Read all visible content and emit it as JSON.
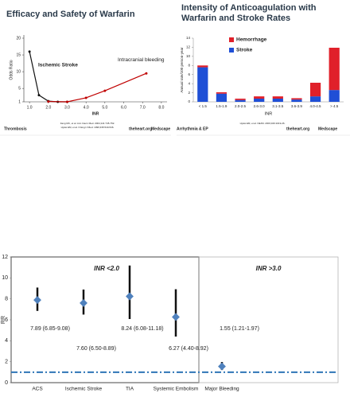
{
  "chart_data": [
    {
      "type": "line",
      "title": "Efficacy and Safety of Warfarin",
      "xlabel": "INR",
      "ylabel": "Odds Ratio",
      "xlim": [
        0.7,
        8.3
      ],
      "ylim": [
        1,
        20
      ],
      "xticks": [
        {
          "value": 1,
          "label": "1.0"
        },
        {
          "value": 2,
          "label": "2.0"
        },
        {
          "value": 3,
          "label": "3.0"
        },
        {
          "value": 4,
          "label": "4.0"
        },
        {
          "value": 5,
          "label": "5.0"
        },
        {
          "value": 6,
          "label": "6.0"
        },
        {
          "value": 7,
          "label": "7.0"
        },
        {
          "value": 8,
          "label": "8.0"
        }
      ],
      "yticks": [
        1,
        5,
        10,
        15,
        20
      ],
      "series": [
        {
          "name": "Ischemic Stroke",
          "color": "#111111",
          "x": [
            1.0,
            1.5,
            2.0,
            2.5,
            3.0
          ],
          "values": [
            16,
            3,
            1.2,
            1,
            1
          ]
        },
        {
          "name": "Intracranial bleeding",
          "color": "#c00000",
          "x": [
            2.0,
            3.0,
            4.0,
            5.0,
            7.2
          ],
          "values": [
            1.1,
            1,
            2.2,
            4.3,
            9.5
          ]
        }
      ],
      "footnotes": [
        "Fang MC, et al. Ann Intern Med. 2004;141:745-752.",
        "Hylek EM, et al. N Engl J Med. 1996;335:540-546."
      ],
      "logos": [
        "Thrombosis",
        "theheart.org",
        "Medscape"
      ]
    },
    {
      "type": "bar",
      "stacked": true,
      "title": "Intensity of Anticoagulation  with Warfarin and Stroke Rates",
      "xlabel": "INR",
      "ylabel": "Annual rate/100 person-year",
      "categories": [
        "< 1.5",
        "1.5-1.9",
        "2.0-2.5",
        "2.6-3.0",
        "3.1-3.5",
        "3.6-3.9",
        "4.0-4.5",
        "> 4.5"
      ],
      "ylim": [
        0,
        14
      ],
      "yticks": [
        0,
        2,
        4,
        6,
        8,
        10,
        12,
        14
      ],
      "series": [
        {
          "name": "Stroke",
          "color": "#1f4fd6",
          "values": [
            7.6,
            1.8,
            0.4,
            0.7,
            0.7,
            0.5,
            1.2,
            2.6
          ]
        },
        {
          "name": "Hemorrhage",
          "color": "#e0202a",
          "values": [
            0.4,
            0.3,
            0.3,
            0.5,
            0.5,
            0.3,
            3.0,
            9.3
          ]
        }
      ],
      "footnotes": [
        "Hylek EM, et al. NEJM. 2003;349:1019-26."
      ],
      "logos": [
        "Arrhythmia & EP",
        "theheart.org",
        "Medscape"
      ]
    },
    {
      "type": "errorbar",
      "ylabel": "RR",
      "categories": [
        "ACS",
        "Ischemic Stroke",
        "TIA",
        "Systemic Embolism",
        "Major Bleeding"
      ],
      "ylim": [
        0,
        12
      ],
      "yticks": [
        0,
        2,
        4,
        6,
        8,
        10,
        12
      ],
      "values": [
        7.89,
        7.6,
        8.24,
        6.27,
        1.55
      ],
      "low": [
        6.85,
        6.5,
        6.08,
        4.4,
        1.21
      ],
      "high": [
        9.08,
        8.89,
        11.18,
        8.92,
        1.97
      ],
      "value_labels": [
        "7.89 (6.85-9.08)",
        "7.60 (6.50-8.89)",
        "8.24 (6.08-11.18)",
        "6.27 (4.40-8.92)",
        "1.55 (1.21-1.97)"
      ],
      "color": "#4f81bd",
      "reference_line": 1,
      "annotations": [
        "INR <2.0",
        "INR >3.0"
      ]
    }
  ]
}
